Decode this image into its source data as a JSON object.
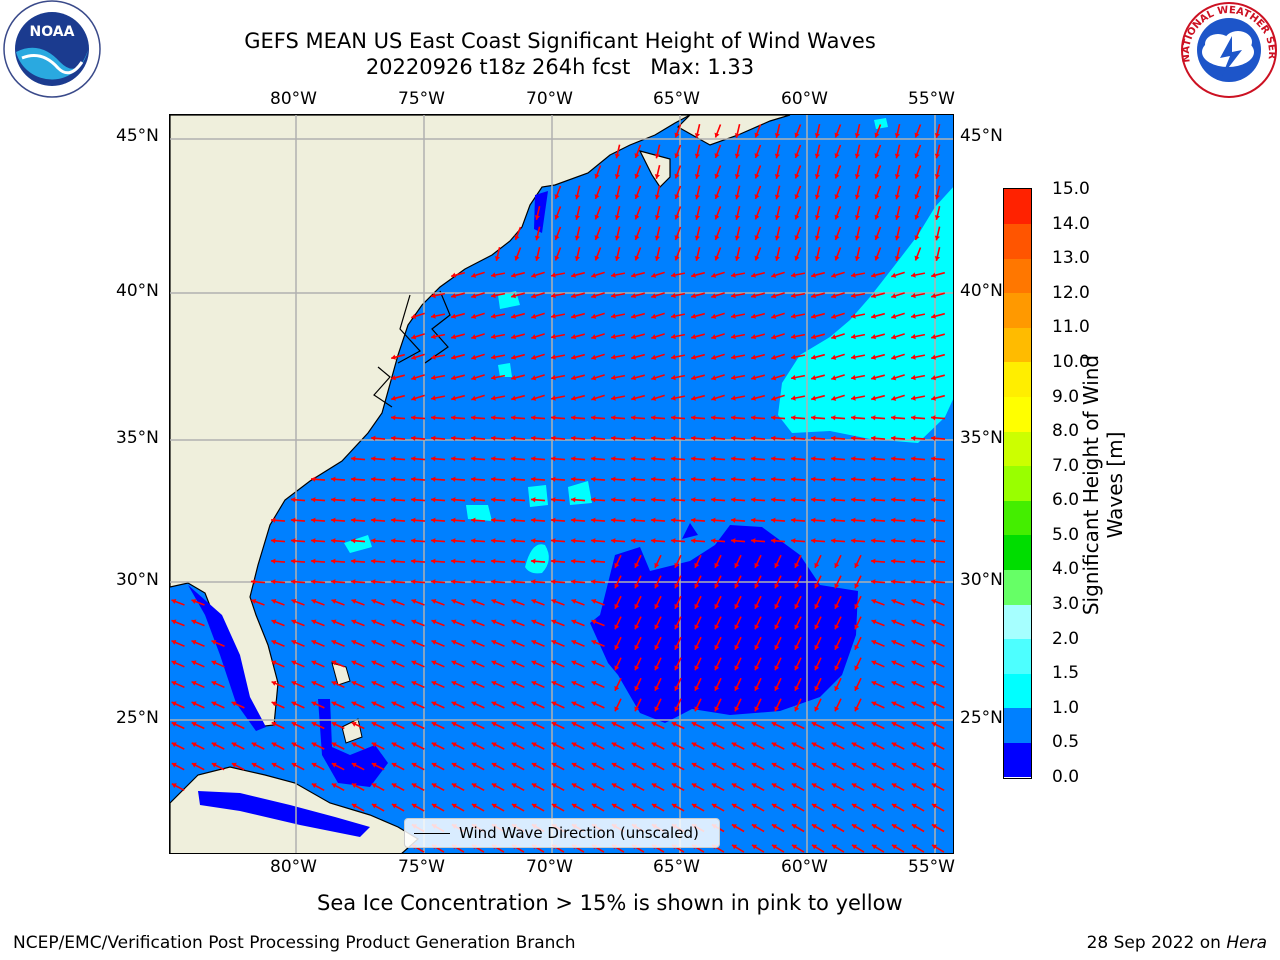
{
  "title": {
    "line1": "GEFS MEAN US East Coast Significant Height of Wind Waves",
    "line2": "20220926 t18z 264h fcst   Max: 1.33"
  },
  "logos": {
    "noaa_text": "NOAA",
    "nws_text": "NATIONAL WEATHER SERVICE"
  },
  "map": {
    "lon_labels": [
      "80°W",
      "75°W",
      "70°W",
      "65°W",
      "60°W",
      "55°W"
    ],
    "lat_labels": [
      "45°N",
      "40°N",
      "35°N",
      "30°N",
      "25°N"
    ],
    "legend_label": "Wind Wave Direction (unscaled)",
    "colors": {
      "land": "#efefdc",
      "ocean_light": "#0080ff",
      "ocean_dark": "#0000ff",
      "cyan": "#00ffff",
      "arrow": "#ff0000",
      "grid": "#b0b0b0"
    }
  },
  "colorbar": {
    "title": "Significant Height of Wind Waves [m]",
    "labels": [
      "15.0",
      "14.0",
      "13.0",
      "12.0",
      "11.0",
      "10.0",
      "9.0",
      "8.0",
      "7.0",
      "6.0",
      "5.0",
      "4.0",
      "3.0",
      "2.0",
      "1.5",
      "1.0",
      "0.5",
      "0.0"
    ],
    "colors": [
      "#0000ff",
      "#0080ff",
      "#00ffff",
      "#4dffff",
      "#a6ffff",
      "#66ff66",
      "#00dd00",
      "#44ee00",
      "#99ff00",
      "#ccff00",
      "#ffff00",
      "#ffee00",
      "#ffbb00",
      "#ff9900",
      "#ff7700",
      "#ff5500",
      "#ff2200"
    ]
  },
  "footnote": "Sea Ice Concentration > 15% is shown in pink to yellow",
  "footer": {
    "left": "NCEP/EMC/Verification Post Processing Product Generation Branch",
    "right_date": "28 Sep 2022 on ",
    "right_host": "Hera"
  }
}
